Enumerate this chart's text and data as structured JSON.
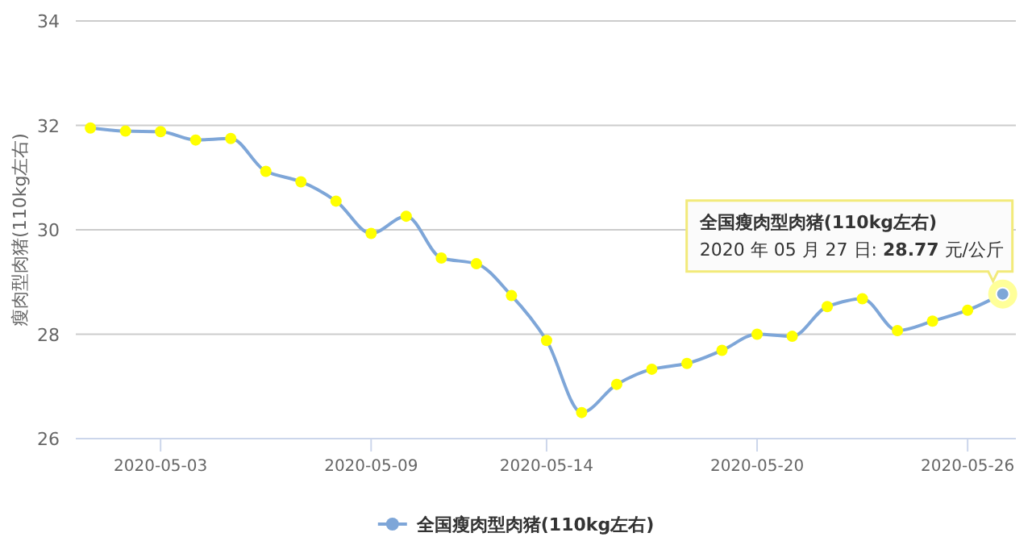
{
  "chart_data": {
    "type": "line",
    "ylabel": "瘦肉型肉猪(110kg左右)",
    "x": [
      "2020-05-01",
      "2020-05-02",
      "2020-05-03",
      "2020-05-04",
      "2020-05-05",
      "2020-05-06",
      "2020-05-07",
      "2020-05-08",
      "2020-05-09",
      "2020-05-10",
      "2020-05-11",
      "2020-05-12",
      "2020-05-13",
      "2020-05-14",
      "2020-05-15",
      "2020-05-16",
      "2020-05-17",
      "2020-05-18",
      "2020-05-19",
      "2020-05-20",
      "2020-05-21",
      "2020-05-22",
      "2020-05-23",
      "2020-05-24",
      "2020-05-25",
      "2020-05-26",
      "2020-05-27"
    ],
    "series": [
      {
        "name": "全国瘦肉型肉猪(110kg左右)",
        "color": "#7ea6d8",
        "values": [
          31.95,
          31.89,
          31.88,
          31.72,
          31.75,
          31.12,
          30.92,
          30.55,
          29.93,
          30.26,
          29.46,
          29.35,
          28.74,
          27.88,
          26.5,
          27.04,
          27.33,
          27.44,
          27.69,
          28.0,
          27.96,
          28.53,
          28.68,
          28.07,
          28.25,
          28.46,
          28.77
        ]
      }
    ],
    "xlim": [
      "2020-04-30T14:00",
      "2020-05-27T09:00"
    ],
    "xticks": [
      "2020-05-03",
      "2020-05-09",
      "2020-05-14",
      "2020-05-20",
      "2020-05-26"
    ],
    "ylim": [
      26,
      34
    ],
    "yticks": [
      26,
      28,
      30,
      32,
      34
    ],
    "grid": "y",
    "legend": "bottom",
    "marker": "circle",
    "line_style": "solid",
    "annotations": [
      "全国瘦肉型肉猪(110kg左右)",
      "2020 年 05 月 27 日: **28.77** 元/公斤"
    ]
  }
}
